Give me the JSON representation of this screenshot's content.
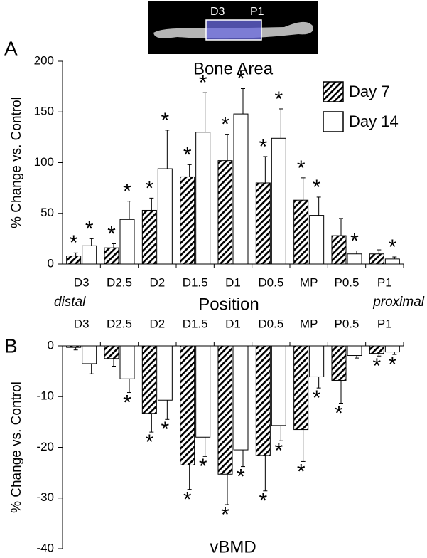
{
  "image": {
    "labels": [
      "D3",
      "P1"
    ]
  },
  "chart_data": [
    {
      "type": "bar",
      "panel_label": "A",
      "title": "Bone Area",
      "ylabel": "% Change vs. Control",
      "xlabel": "Position",
      "left_note": "distal",
      "right_note": "proximal",
      "categories": [
        "D3",
        "D2.5",
        "D2",
        "D1.5",
        "D1",
        "D0.5",
        "MP",
        "P0.5",
        "P1"
      ],
      "series": [
        {
          "name": "Day 7",
          "hatch": true,
          "color": "#000000",
          "values": [
            8,
            16,
            53,
            86,
            102,
            80,
            63,
            28,
            10
          ],
          "errors": [
            3,
            4,
            12,
            12,
            26,
            26,
            22,
            17,
            4
          ],
          "markers": [
            "*",
            "*",
            "*",
            "*",
            "*",
            "*",
            "*",
            null,
            null
          ]
        },
        {
          "name": "Day 14",
          "hatch": false,
          "color": "#000000",
          "values": [
            18,
            44,
            94,
            130,
            148,
            124,
            48,
            10,
            5
          ],
          "errors": [
            7,
            18,
            38,
            39,
            25,
            29,
            18,
            3,
            2
          ],
          "markers": [
            "*",
            "*",
            "*",
            "*",
            "*",
            "*",
            "*",
            "*",
            "*"
          ]
        }
      ],
      "ylim": [
        0,
        200
      ],
      "yticks": [
        0,
        50,
        100,
        150,
        200
      ],
      "legend": "upper right"
    },
    {
      "type": "bar",
      "panel_label": "B",
      "title": "vBMD",
      "ylabel": "% Change vs. Control",
      "categories": [
        "D3",
        "D2.5",
        "D2",
        "D1.5",
        "D1",
        "D0.5",
        "MP",
        "P0.5",
        "P1"
      ],
      "series": [
        {
          "name": "Day 7",
          "hatch": true,
          "color": "#000000",
          "values": [
            -0.3,
            -2.5,
            -13.3,
            -23.5,
            -25.3,
            -21.6,
            -16.5,
            -6.8,
            -1.5
          ],
          "errors": [
            0.5,
            1.5,
            3.7,
            4.8,
            6,
            7,
            6.3,
            4.5,
            0.5
          ],
          "markers": [
            null,
            null,
            "*",
            "*",
            "*",
            "*",
            "*",
            "*",
            "*"
          ]
        },
        {
          "name": "Day 14",
          "hatch": false,
          "color": "#000000",
          "values": [
            -3.5,
            -6.5,
            -10.7,
            -18,
            -20.5,
            -15.7,
            -6.1,
            -1.9,
            -1.2
          ],
          "errors": [
            2,
            2.7,
            3.8,
            3.8,
            3.3,
            3,
            2.2,
            0.5,
            0.5
          ],
          "markers": [
            null,
            "*",
            "*",
            "*",
            "*",
            "*",
            "*",
            null,
            "*"
          ]
        }
      ],
      "ylim": [
        -40,
        0
      ],
      "yticks": [
        -40,
        -30,
        -20,
        -10,
        0
      ]
    }
  ]
}
